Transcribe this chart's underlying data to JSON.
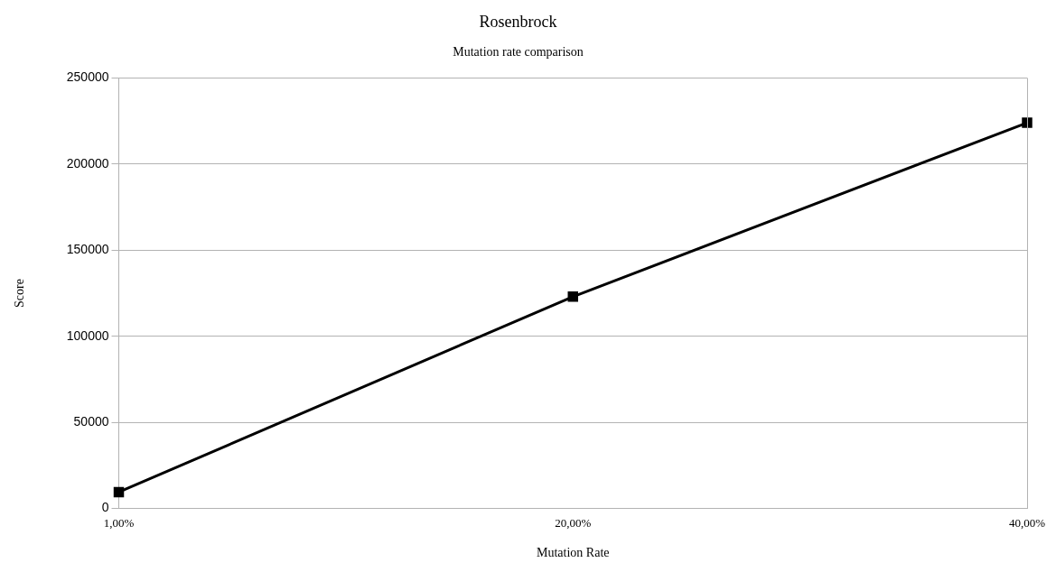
{
  "chart_data": {
    "type": "line",
    "title": "Rosenbrock",
    "subtitle": "Mutation rate comparison",
    "xlabel": "Mutation Rate",
    "ylabel": "Score",
    "categories": [
      "1,00%",
      "20,00%",
      "40,00%"
    ],
    "series": [
      {
        "color": "#000000",
        "values": [
          9500,
          123000,
          224000
        ]
      }
    ],
    "ylim": [
      0,
      250000
    ],
    "yticks": [
      0,
      50000,
      100000,
      150000,
      200000,
      250000
    ],
    "grid": "y",
    "legend": false,
    "marker": "square",
    "line_style": "solid"
  }
}
